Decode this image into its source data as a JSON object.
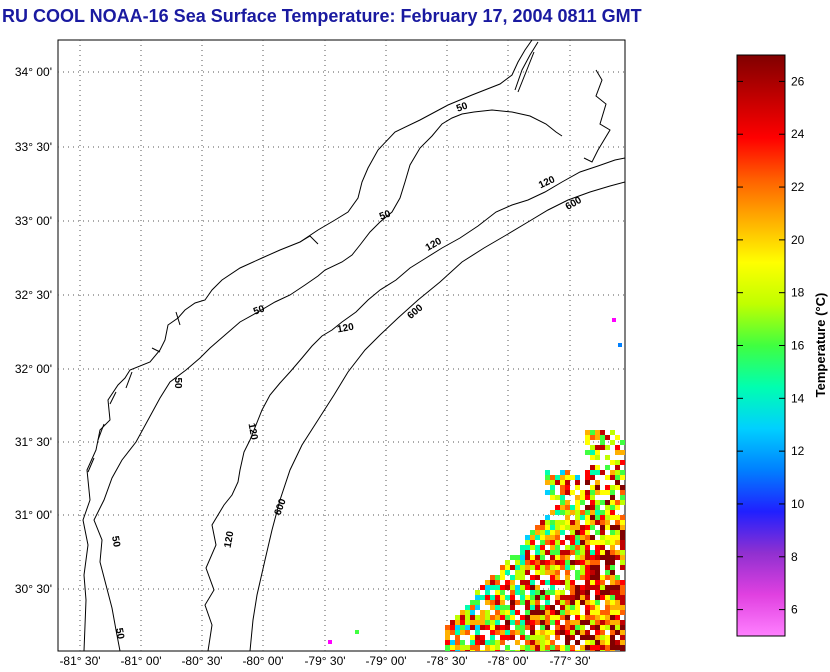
{
  "title": "RU COOL  NOAA-16  Sea Surface Temperature:  February 17, 2004 0811 GMT",
  "lat_labels": [
    "34° 00'",
    "33° 30'",
    "33° 00'",
    "32° 30'",
    "32° 00'",
    "31° 30'",
    "31° 00'",
    "30° 30'"
  ],
  "lon_labels": [
    "-81° 30'",
    "-81° 00'",
    "-80° 30'",
    "-80° 00'",
    "-79° 30'",
    "-79° 00'",
    "-78° 30'",
    "-78° 00'",
    "-77° 30'"
  ],
  "contour_labels": [
    "50",
    "50",
    "50",
    "50",
    "50",
    "50",
    "120",
    "120",
    "120",
    "120",
    "120",
    "600",
    "600",
    "600"
  ],
  "colorbar": {
    "label": "Temperature (°C)",
    "ticks": [
      "26",
      "24",
      "22",
      "20",
      "18",
      "16",
      "14",
      "12",
      "10",
      "8",
      "6"
    ],
    "min": 5,
    "max": 27,
    "colors": [
      "#ff80ff",
      "#e040e0",
      "#9030d0",
      "#2020ff",
      "#0080ff",
      "#00d0ff",
      "#00ffb0",
      "#40ff40",
      "#c0ff00",
      "#ffff00",
      "#ffb000",
      "#ff6000",
      "#ff0000",
      "#c00000",
      "#800000"
    ]
  }
}
